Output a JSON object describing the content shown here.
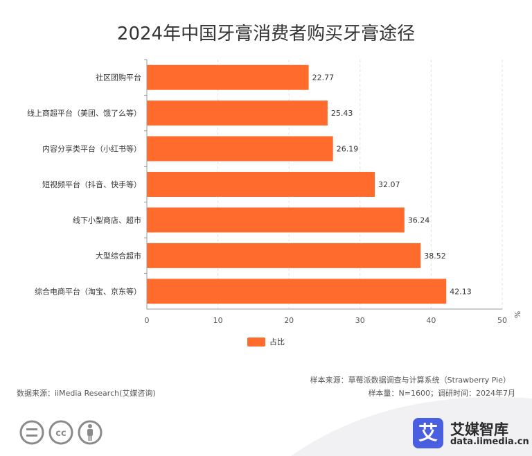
{
  "title": "2024年中国牙膏消费者购买牙膏途径",
  "colors": {
    "bar": "#ff6b2c",
    "grid": "#e3e3e3",
    "axis": "#999999"
  },
  "chart_data": {
    "type": "bar",
    "orientation": "horizontal",
    "title": "2024年中国牙膏消费者购买牙膏途径",
    "categories": [
      "社区团购平台",
      "线上商超平台（美团、饿了么等）",
      "内容分享类平台（小红书等）",
      "短视频平台（抖音、快手等）",
      "线下小型商店、超市",
      "大型综合超市",
      "综合电商平台（淘宝、京东等）"
    ],
    "series": [
      {
        "name": "占比",
        "values": [
          22.77,
          25.43,
          26.19,
          32.07,
          36.24,
          38.52,
          42.13
        ]
      }
    ],
    "xlim": [
      0,
      50
    ],
    "xticks": [
      "0",
      "10",
      "20",
      "30",
      "40",
      "50"
    ],
    "unit": "%",
    "grid": true,
    "legend_position": "bottom"
  },
  "footer": {
    "source": "数据来源：iiMedia Research(艾媒咨询)",
    "sample_source": "样本来源：草莓派数据调查与计算系统（Strawberry Pie）",
    "sample_size": "样本量：N=1600；调研时间：2024年7月"
  },
  "brand": {
    "logo_char": "艾",
    "name": "艾媒智库",
    "url": "data.iimedia.cn"
  },
  "icons": [
    "equals-circle-icon",
    "cc-icon",
    "person-icon"
  ]
}
